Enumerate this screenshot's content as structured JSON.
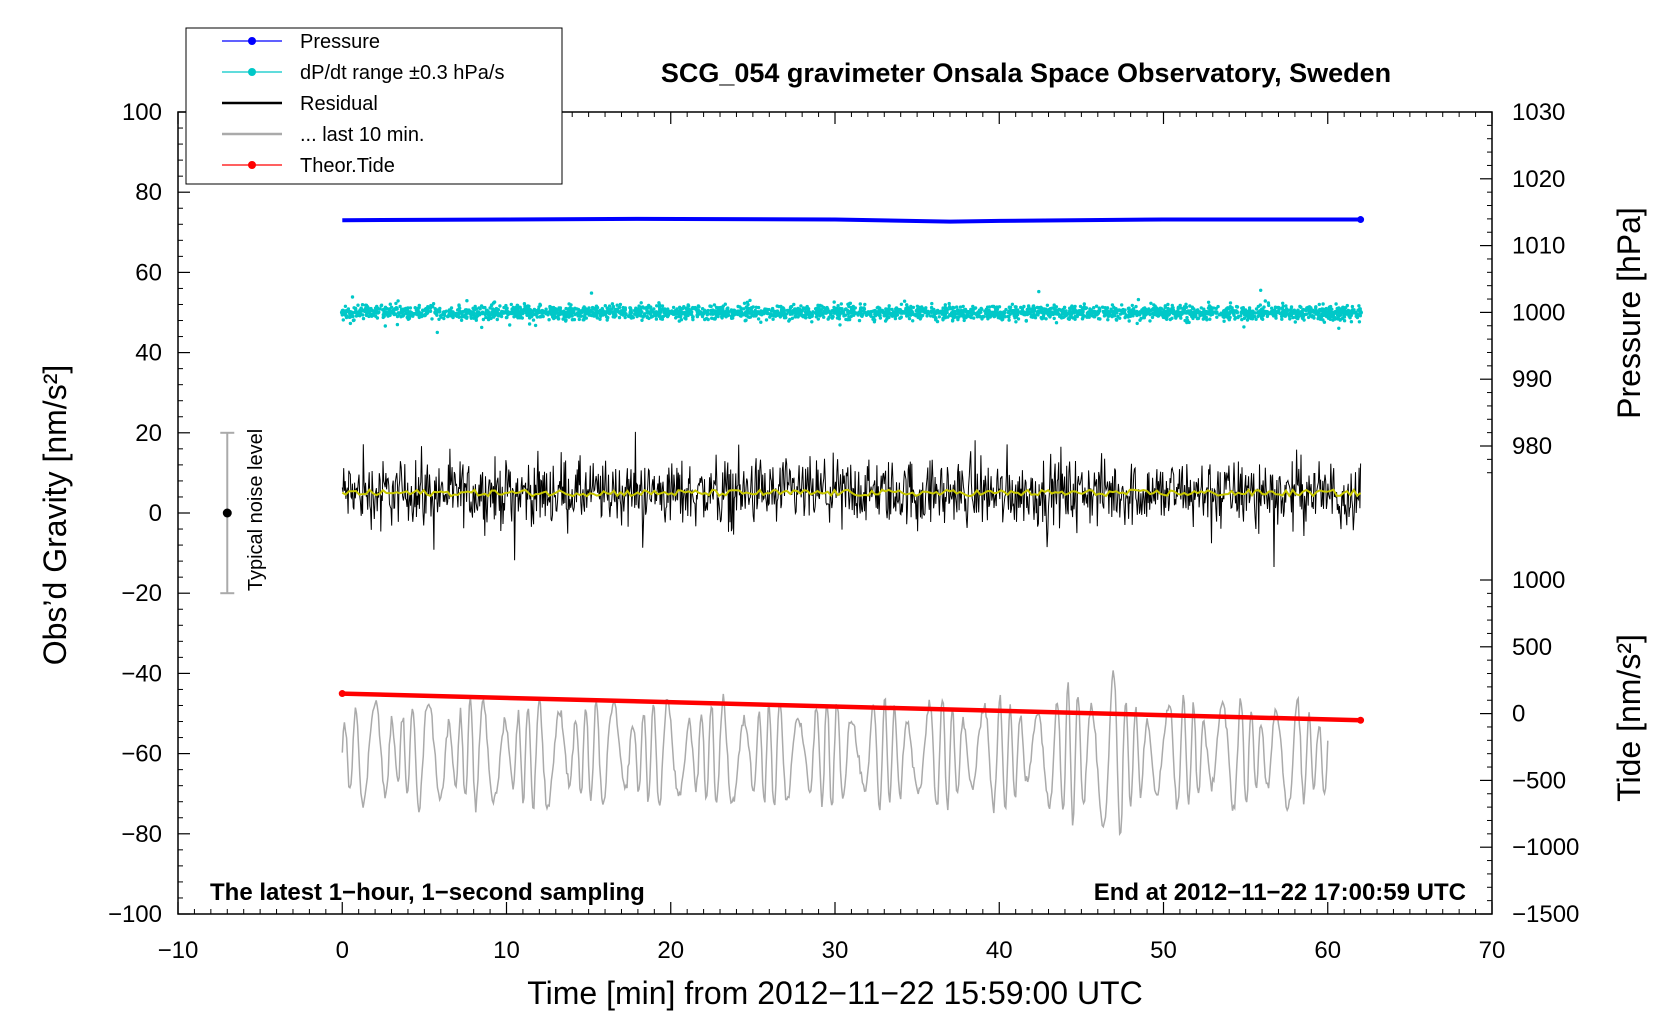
{
  "chart_data": {
    "type": "line",
    "title": "SCG_054 gravimeter Onsala Space Observatory, Sweden",
    "xlabel": "Time [min] from 2012−11−22 15:59:00 UTC",
    "ylabel_left": "Obs’d Gravity [nm/s²]",
    "ylabel_right_pressure": "Pressure [hPa]",
    "ylabel_right_tide": "Tide [nm/s²]",
    "xlim": [
      -10,
      70
    ],
    "ylim_left": [
      -100,
      100
    ],
    "pressure_axis_range": [
      975,
      1030
    ],
    "tide_axis_range": [
      -1500,
      1000
    ],
    "x_ticks": [
      "−10",
      "0",
      "10",
      "20",
      "30",
      "40",
      "50",
      "60",
      "70"
    ],
    "x_tick_values": [
      -10,
      0,
      10,
      20,
      30,
      40,
      50,
      60,
      70
    ],
    "y_ticks_left": [
      "100",
      "80",
      "60",
      "40",
      "20",
      "0",
      "−20",
      "−40",
      "−60",
      "−80",
      "−100"
    ],
    "y_tick_values_left": [
      100,
      80,
      60,
      40,
      20,
      0,
      -20,
      -40,
      -60,
      -80,
      -100
    ],
    "pressure_ticks": [
      "1030",
      "1020",
      "1010",
      "1000",
      "990",
      "980"
    ],
    "pressure_tick_values": [
      1030,
      1020,
      1010,
      1000,
      990,
      980
    ],
    "tide_ticks": [
      "1000",
      "500",
      "0",
      "−500",
      "−1000",
      "−1500"
    ],
    "tide_tick_values": [
      1000,
      500,
      0,
      -500,
      -1000,
      -1500
    ],
    "grid": false,
    "legend_position": "top-left",
    "legend": [
      {
        "label": "Pressure",
        "color": "#0000ff",
        "marker": "dot"
      },
      {
        "label": "dP/dt range ±0.3 hPa/s",
        "color": "#00c8c8",
        "marker": "dot"
      },
      {
        "label": "Residual",
        "color": "#000000",
        "marker": "line"
      },
      {
        "label": "... last 10 min.",
        "color": "#aaaaaa",
        "marker": "line"
      },
      {
        "label": "Theor.Tide",
        "color": "#ff0000",
        "marker": "dot"
      }
    ],
    "annotations": {
      "left": "The latest 1−hour, 1−second sampling",
      "right": "End at 2012−11−22 17:00:59 UTC",
      "noise_label": "Typical noise level"
    },
    "noise_bar": {
      "x": -7,
      "center": 0,
      "low": -20,
      "high": 20
    },
    "series": [
      {
        "name": "Pressure",
        "color": "#0000ff",
        "axis": "pressure",
        "x": [
          0,
          10,
          18,
          30,
          37,
          40,
          50,
          62
        ],
        "y": [
          1013.8,
          1013.9,
          1014.0,
          1013.9,
          1013.6,
          1013.7,
          1013.9,
          1013.9
        ]
      },
      {
        "name": "dP/dt range ±0.3 hPa/s",
        "color": "#00c8c8",
        "axis": "left",
        "x_range": [
          0,
          62
        ],
        "center": 50,
        "spread": 10
      },
      {
        "name": "Residual",
        "color": "#000000",
        "axis": "left",
        "x_range": [
          0,
          62
        ],
        "center": 5,
        "spread": 20
      },
      {
        "name": "Residual (smoothed)",
        "color": "#c8c800",
        "axis": "left",
        "x_range": [
          0,
          62
        ],
        "center": 5
      },
      {
        "name": "... last 10 min.",
        "color": "#aaaaaa",
        "axis": "left",
        "x_range": [
          0,
          60
        ],
        "center": -60,
        "spread": 25
      },
      {
        "name": "Theor.Tide",
        "color": "#ff0000",
        "axis": "tide",
        "x": [
          0,
          62
        ],
        "y": [
          150,
          -50
        ]
      }
    ]
  }
}
